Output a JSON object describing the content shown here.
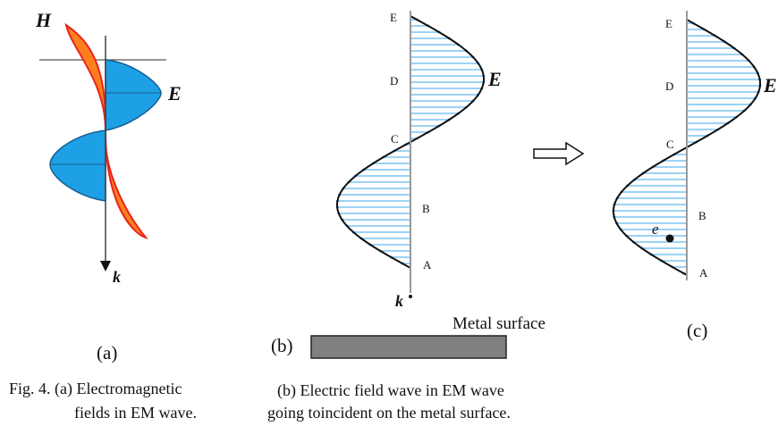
{
  "panel_a": {
    "label": "(a)",
    "h_label": "H",
    "e_label": "E",
    "k_label": "k"
  },
  "panel_b": {
    "label": "(b)",
    "points": [
      "E",
      "D",
      "C",
      "B",
      "A"
    ],
    "e_label": "E",
    "k_label": "k",
    "metal_label": "Metal surface"
  },
  "panel_c": {
    "label": "(c)",
    "points": [
      "E",
      "D",
      "C",
      "B",
      "A"
    ],
    "e_label": "E",
    "electron_label": "e"
  },
  "caption": {
    "left_line1": "Fig. 4. (a) Electromagnetic",
    "left_line2": "fields in EM wave.",
    "right_line1": "(b) Electric field wave in EM wave",
    "right_line2": "going toincident on the metal surface."
  },
  "colors": {
    "wave_fill": "#1ea0e6",
    "h_fill": "#ff7f1e",
    "h_stroke": "#e8241c",
    "hatch": "#3aa6e8",
    "metal": "#808080"
  }
}
